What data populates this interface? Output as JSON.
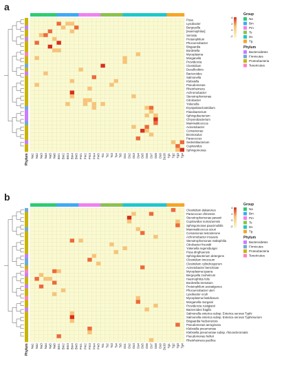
{
  "colors": {
    "background": "#ffffff",
    "low": "#fafad2",
    "mid": "#f7c47a",
    "high": "#d7301f",
    "grid": "#e8e1b0"
  },
  "groups": [
    {
      "name": "Na",
      "color": "#2ecc71"
    },
    {
      "name": "Bm",
      "color": "#3fa9f5"
    },
    {
      "name": "Pm",
      "color": "#ee82ee"
    },
    {
      "name": "Ts",
      "color": "#8bc34a"
    },
    {
      "name": "Ds",
      "color": "#1ec8c8"
    },
    {
      "name": "Tg",
      "color": "#f5a623"
    }
  ],
  "phyla": [
    {
      "name": "Bacteroidetes",
      "color": "#c77dff"
    },
    {
      "name": "Firmicutes",
      "color": "#6fa8dc"
    },
    {
      "name": "Proteobacteria",
      "color": "#c9b400"
    },
    {
      "name": "Tenericutes",
      "color": "#ff80c0"
    }
  ],
  "samples": [
    "Na1",
    "Na2",
    "Na3",
    "Na4",
    "Na5",
    "Na6",
    "Bm1",
    "Bm2",
    "Bm3",
    "Bm4",
    "Bm5",
    "Pm1",
    "Pm2",
    "Pm3",
    "Pm4",
    "Pm5",
    "Ts1",
    "Ts2",
    "Ts3",
    "Ts4",
    "Ts5",
    "Ds1",
    "Ds2",
    "Ds3",
    "Ds4",
    "Ds5",
    "Ds6",
    "Ds7",
    "Ds8",
    "Ds9",
    "Ds10",
    "Tg1",
    "Tg2",
    "Tg3",
    "Tg4"
  ],
  "sample_groups": [
    0,
    0,
    0,
    0,
    0,
    0,
    1,
    1,
    1,
    1,
    1,
    2,
    2,
    2,
    2,
    2,
    3,
    3,
    3,
    3,
    3,
    4,
    4,
    4,
    4,
    4,
    4,
    4,
    4,
    4,
    4,
    5,
    5,
    5,
    5
  ],
  "chart_data": [
    {
      "type": "heatmap",
      "panel": "a",
      "legend_titles": {
        "group": "Group",
        "phylum": "Phylum"
      },
      "legend_scale": [
        "4",
        "2",
        "0",
        "-2"
      ],
      "axis_label": "Phylum",
      "rows": [
        "Pusa",
        "Lysobacter",
        "Bergeyella",
        "[Haemophilus]",
        "Serratia",
        "Proteinphilum",
        "Phocoenobacter",
        "Bisgaardia",
        "Bordetella",
        "Mycoplasma",
        "Morganella",
        "Providencia",
        "Clostridium",
        "Desulfovibrio",
        "Bacteroides",
        "Salmonella",
        "Klebsiella",
        "Pseudomonas",
        "Rheinheimera",
        "Achromobacter",
        "Stenotrophomonas",
        "Citrobacter",
        "Yokenella",
        "Erysipelatoclostridium",
        "Flavobacterium",
        "Sphingobacterium",
        "Chryseobacterium",
        "Mammaliicoccus",
        "Acinetobacter",
        "Comamonas",
        "Brontosulus",
        "Paracoccus",
        "Sedentibacterium",
        "Cupriavidus",
        "Sphingomonas"
      ],
      "row_phylum": [
        2,
        2,
        0,
        2,
        2,
        0,
        2,
        2,
        2,
        3,
        2,
        2,
        1,
        2,
        0,
        2,
        2,
        2,
        2,
        2,
        2,
        2,
        2,
        1,
        0,
        0,
        0,
        1,
        2,
        2,
        2,
        2,
        0,
        2,
        2
      ],
      "hot": [
        [
          1,
          6,
          2
        ],
        [
          1,
          8,
          1
        ],
        [
          1,
          9,
          1
        ],
        [
          2,
          7,
          1
        ],
        [
          2,
          10,
          2
        ],
        [
          3,
          4,
          2
        ],
        [
          3,
          9,
          1
        ],
        [
          4,
          2,
          1
        ],
        [
          4,
          3,
          2
        ],
        [
          5,
          5,
          1
        ],
        [
          6,
          6,
          3
        ],
        [
          6,
          1,
          2
        ],
        [
          7,
          4,
          3
        ],
        [
          8,
          5,
          1
        ],
        [
          8,
          6,
          1
        ],
        [
          9,
          24,
          1
        ],
        [
          10,
          21,
          1
        ],
        [
          11,
          21,
          1
        ],
        [
          12,
          16,
          3
        ],
        [
          13,
          11,
          1
        ],
        [
          14,
          3,
          1
        ],
        [
          15,
          14,
          2
        ],
        [
          16,
          9,
          1
        ],
        [
          16,
          19,
          1
        ],
        [
          17,
          18,
          1
        ],
        [
          18,
          13,
          1
        ],
        [
          19,
          9,
          3
        ],
        [
          20,
          9,
          1
        ],
        [
          20,
          23,
          1
        ],
        [
          21,
          12,
          1
        ],
        [
          21,
          13,
          1
        ],
        [
          22,
          8,
          1
        ],
        [
          22,
          12,
          1
        ],
        [
          22,
          14,
          1
        ],
        [
          22,
          16,
          1
        ],
        [
          23,
          14,
          1
        ],
        [
          23,
          26,
          1
        ],
        [
          23,
          27,
          2
        ],
        [
          24,
          27,
          1
        ],
        [
          25,
          26,
          1
        ],
        [
          25,
          28,
          1
        ],
        [
          26,
          28,
          3
        ],
        [
          27,
          28,
          2
        ],
        [
          28,
          23,
          1
        ],
        [
          28,
          26,
          2
        ],
        [
          29,
          25,
          3
        ],
        [
          29,
          26,
          1
        ],
        [
          30,
          27,
          1
        ],
        [
          31,
          24,
          2
        ],
        [
          32,
          32,
          1
        ],
        [
          32,
          34,
          2
        ],
        [
          33,
          33,
          2
        ],
        [
          34,
          33,
          1
        ],
        [
          34,
          34,
          3
        ],
        [
          10,
          1,
          1
        ],
        [
          17,
          1,
          1
        ]
      ]
    },
    {
      "type": "heatmap",
      "panel": "b",
      "legend_titles": {
        "group": "Group",
        "phylum": "Phylum"
      },
      "legend_scale": [
        "4",
        "2",
        "0",
        "-2"
      ],
      "axis_label": "Phylum",
      "rows": [
        "Clostridium dakarenes",
        "Paracoccus chinensis",
        "Stenotrophomonas pavanii",
        "Cupriavidus numazuensis",
        "Sphingomonas paucimobilis",
        "Mammaliicoccus sciuri",
        "Comamonas testosterone",
        "Achromobacter insuavis",
        "Stenotrophomonas maltophilia",
        "Citrobacter freundii",
        "Yokenella regensburgei",
        "Pusa dinghuensis",
        "Sphingobacterium detergens",
        "Clostridium innocuum",
        "Clostridium cylindrosporum",
        "Acinetobacter bereziniae",
        "Mycoplasma iguana",
        "Bergeyella zoohelcum",
        "Haemophilus felis",
        "Bordetella trematum",
        "Proteinphilum acetatigenes",
        "Phocoenobacter uteri",
        "Lysobacter oculi",
        "Mycoplasma fastidiosum",
        "Morganella morganii",
        "Providencia rustigianii",
        "Bacteroides fragilis",
        "Salmonella enterica subsp. Enterica serovar Typhi",
        "Salmonella enterica subsp. Enterica serovar Typhimurium",
        "Bisgaardia hudsonensis",
        "Pseudomonas aeruginosa",
        "Klebsiella pneumoniae",
        "Klebsiella pneumoniae subsp. rhinoscleromatis",
        "Pseudomonas helleri",
        "Rheinheimera pacifica"
      ],
      "row_phylum": [
        1,
        2,
        2,
        2,
        2,
        1,
        2,
        2,
        2,
        2,
        2,
        2,
        0,
        1,
        1,
        2,
        3,
        0,
        2,
        2,
        0,
        2,
        2,
        3,
        2,
        2,
        0,
        2,
        2,
        2,
        2,
        2,
        2,
        2,
        2
      ],
      "hot": [
        [
          0,
          32,
          2
        ],
        [
          1,
          23,
          1
        ],
        [
          1,
          27,
          2
        ],
        [
          2,
          22,
          3
        ],
        [
          3,
          22,
          1
        ],
        [
          3,
          33,
          1
        ],
        [
          4,
          33,
          2
        ],
        [
          5,
          24,
          1
        ],
        [
          6,
          25,
          2
        ],
        [
          7,
          28,
          1
        ],
        [
          8,
          9,
          2
        ],
        [
          9,
          18,
          1
        ],
        [
          10,
          21,
          1
        ],
        [
          11,
          19,
          1
        ],
        [
          12,
          14,
          1
        ],
        [
          13,
          13,
          2
        ],
        [
          14,
          15,
          1
        ],
        [
          15,
          25,
          2
        ],
        [
          16,
          5,
          2
        ],
        [
          16,
          6,
          1
        ],
        [
          17,
          2,
          1
        ],
        [
          18,
          1,
          2
        ],
        [
          18,
          4,
          1
        ],
        [
          19,
          5,
          2
        ],
        [
          20,
          2,
          2
        ],
        [
          21,
          7,
          1
        ],
        [
          22,
          5,
          1
        ],
        [
          23,
          24,
          1
        ],
        [
          24,
          24,
          2
        ],
        [
          25,
          28,
          1
        ],
        [
          26,
          26,
          1
        ],
        [
          27,
          9,
          1
        ],
        [
          28,
          9,
          3
        ],
        [
          29,
          9,
          1
        ],
        [
          30,
          33,
          2
        ],
        [
          31,
          13,
          2
        ],
        [
          32,
          13,
          1
        ],
        [
          33,
          6,
          2
        ],
        [
          34,
          27,
          1
        ],
        [
          18,
          3,
          1
        ],
        [
          8,
          11,
          1
        ]
      ]
    }
  ]
}
